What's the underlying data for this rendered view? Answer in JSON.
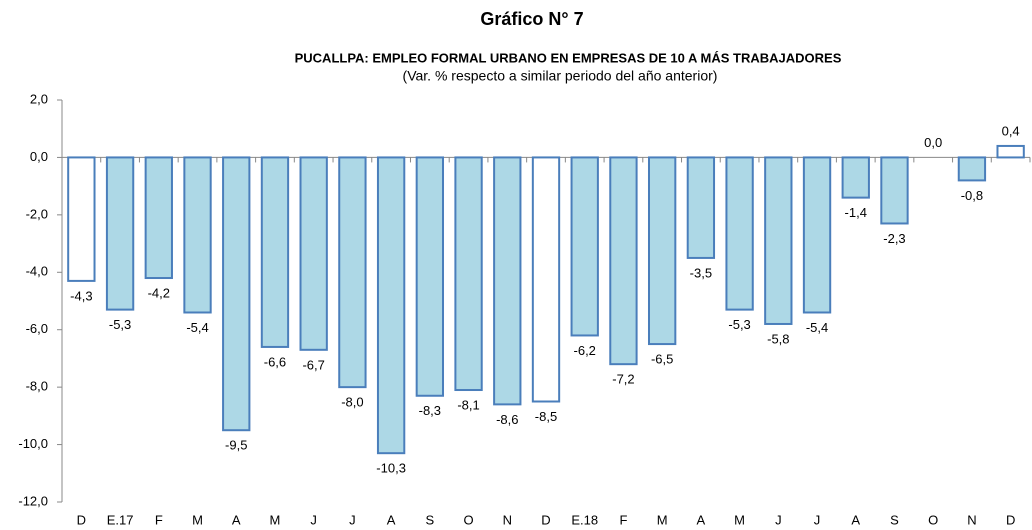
{
  "chart_data": {
    "type": "bar",
    "title": "Gráfico N° 7",
    "subtitle": "PUCALLPA: EMPLEO FORMAL URBANO EN EMPRESAS DE 10 A MÁS TRABAJADORES",
    "note": "(Var. % respecto a similar periodo del año anterior)",
    "categories": [
      "D",
      "E.17",
      "F",
      "M",
      "A",
      "M",
      "J",
      "J",
      "A",
      "S",
      "O",
      "N",
      "D",
      "E.18",
      "F",
      "M",
      "A",
      "M",
      "J",
      "J",
      "A",
      "S",
      "O",
      "N",
      "D"
    ],
    "values": [
      -4.3,
      -5.3,
      -4.2,
      -5.4,
      -9.5,
      -6.6,
      -6.7,
      -8.0,
      -10.3,
      -8.3,
      -8.1,
      -8.6,
      -8.5,
      -6.2,
      -7.2,
      -6.5,
      -3.5,
      -5.3,
      -5.8,
      -5.4,
      -1.4,
      -2.3,
      0.0,
      -0.8,
      0.4
    ],
    "value_labels": [
      "-4,3",
      "-5,3",
      "-4,2",
      "-5,4",
      "-9,5",
      "-6,6",
      "-6,7",
      "-8,0",
      "-10,3",
      "-8,3",
      "-8,1",
      "-8,6",
      "-8,5",
      "-6,2",
      "-7,2",
      "-6,5",
      "-3,5",
      "-5,3",
      "-5,8",
      "-5,4",
      "-1,4",
      "-2,3",
      "0,0",
      "-0,8",
      "0,4"
    ],
    "colors": [
      "#ffffff",
      "#add8e6",
      "#add8e6",
      "#add8e6",
      "#add8e6",
      "#add8e6",
      "#add8e6",
      "#add8e6",
      "#add8e6",
      "#add8e6",
      "#add8e6",
      "#add8e6",
      "#ffffff",
      "#add8e6",
      "#add8e6",
      "#add8e6",
      "#add8e6",
      "#add8e6",
      "#add8e6",
      "#add8e6",
      "#add8e6",
      "#add8e6",
      "#add8e6",
      "#add8e6",
      "#ffffff"
    ],
    "border_color": "#4a7ebb",
    "ylim": [
      -12,
      2
    ],
    "yticks": [
      {
        "value": -12,
        "label": "-12,0"
      },
      {
        "value": -10,
        "label": "-10,0"
      },
      {
        "value": -8,
        "label": "-8,0"
      },
      {
        "value": -6,
        "label": "-6,0"
      },
      {
        "value": -4,
        "label": "-4,0"
      },
      {
        "value": -2,
        "label": "-2,0"
      },
      {
        "value": 0,
        "label": "0,0"
      },
      {
        "value": 2,
        "label": "2,0"
      }
    ],
    "grid": false
  }
}
